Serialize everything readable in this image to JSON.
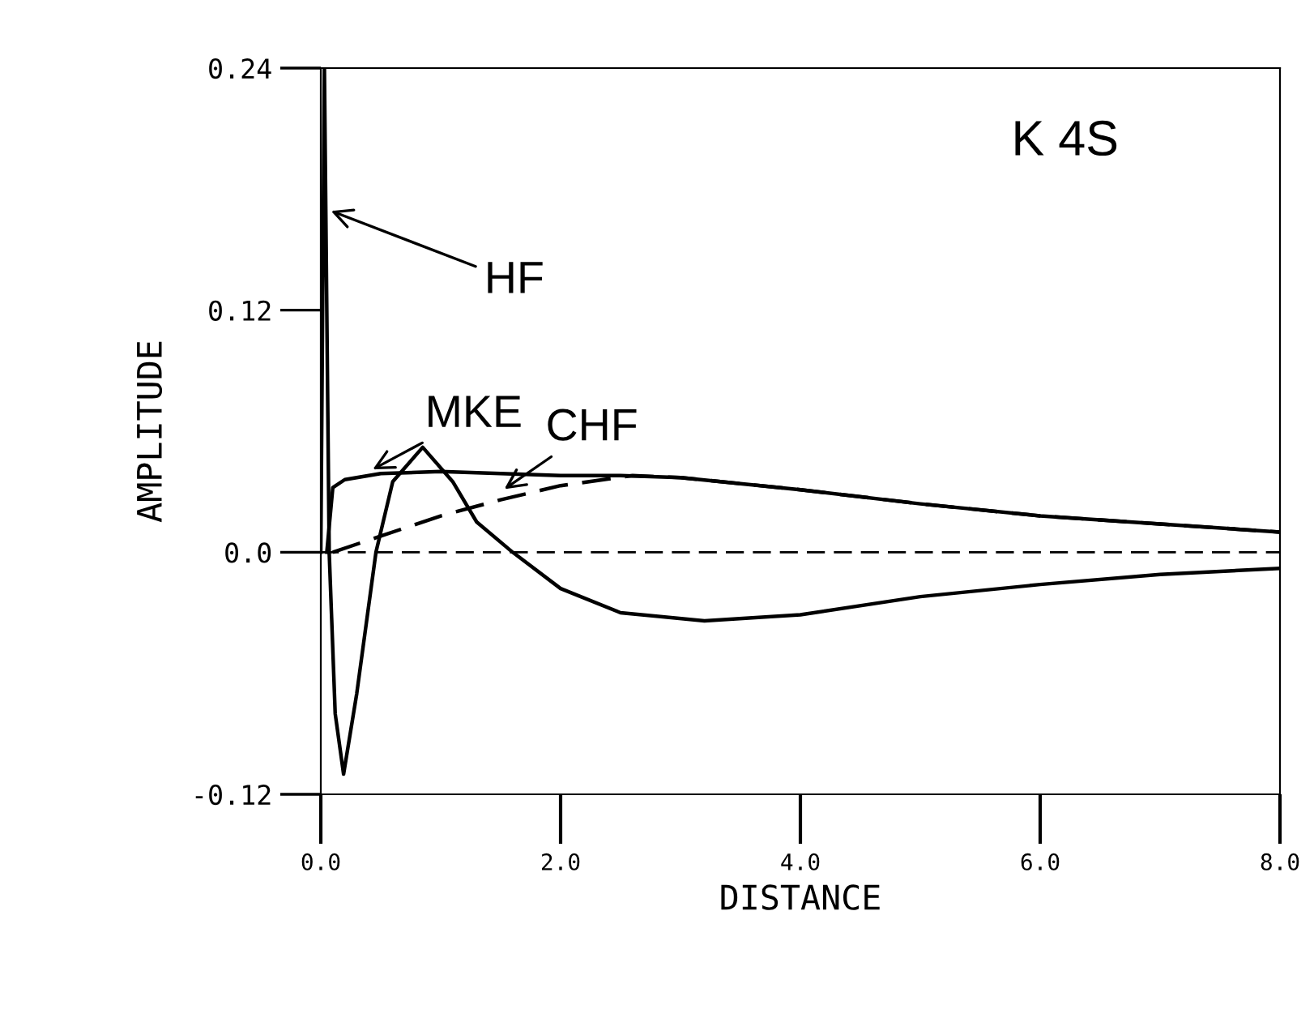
{
  "chart_data": {
    "type": "line",
    "xlabel": "DISTANCE",
    "ylabel": "AMPLITUDE",
    "xlim": [
      0,
      8
    ],
    "ylim": [
      -0.12,
      0.24
    ],
    "xticks": [
      {
        "value": 0,
        "label": "0.0"
      },
      {
        "value": 2,
        "label": "2.0"
      },
      {
        "value": 4,
        "label": "4.0"
      },
      {
        "value": 6,
        "label": "6.0"
      },
      {
        "value": 8,
        "label": "8.0"
      }
    ],
    "yticks": [
      {
        "value": -0.12,
        "label": "-0.12"
      },
      {
        "value": 0,
        "label": "0.0"
      },
      {
        "value": 0.12,
        "label": "0.12"
      },
      {
        "value": 0.24,
        "label": "0.24"
      }
    ],
    "grid": false,
    "legend": false,
    "series": [
      {
        "color": "#000000",
        "line_style": "solid",
        "x": [
          0,
          0.03,
          0.07,
          0.12,
          0.19,
          0.3,
          0.46,
          0.6,
          0.85,
          1.1,
          1.3,
          1.6,
          2.0,
          2.5,
          3.2,
          4,
          5,
          6,
          7,
          8
        ],
        "values": [
          0,
          0.24,
          0.0,
          -0.08,
          -0.11,
          -0.07,
          0,
          0.035,
          0.052,
          0.035,
          0.015,
          0,
          -0.018,
          -0.03,
          -0.034,
          -0.031,
          -0.022,
          -0.016,
          -0.011,
          -0.008
        ]
      },
      {
        "color": "#000000",
        "line_style": "solid",
        "x": [
          0.05,
          0.1,
          0.2,
          0.5,
          1.0,
          1.5,
          2.0,
          2.5,
          3.0,
          4,
          5,
          6,
          7,
          8
        ],
        "values": [
          0,
          0.032,
          0.036,
          0.039,
          0.04,
          0.039,
          0.038,
          0.038,
          0.037,
          0.031,
          0.024,
          0.018,
          0.014,
          0.01
        ]
      },
      {
        "color": "#000000",
        "line_style": "dashed",
        "x": [
          0.1,
          0.5,
          1.0,
          1.5,
          2.0,
          2.6,
          3.0,
          4,
          5,
          6,
          7,
          8
        ],
        "values": [
          0,
          0.008,
          0.018,
          0.026,
          0.033,
          0.038,
          0.037,
          0.031,
          0.024,
          0.018,
          0.014,
          0.01
        ]
      }
    ],
    "ref_lines": [
      {
        "axis": "y",
        "value": 0,
        "color": "#000000",
        "line_style": "dashed"
      }
    ],
    "annotations": [
      "K 4S",
      {
        "text": "HF",
        "x": 0.05,
        "y": 0.17
      },
      {
        "text": "MKE",
        "x": 0.4,
        "y": 0.04
      },
      {
        "text": "CHF",
        "x": 1.5,
        "y": 0.03
      }
    ]
  }
}
